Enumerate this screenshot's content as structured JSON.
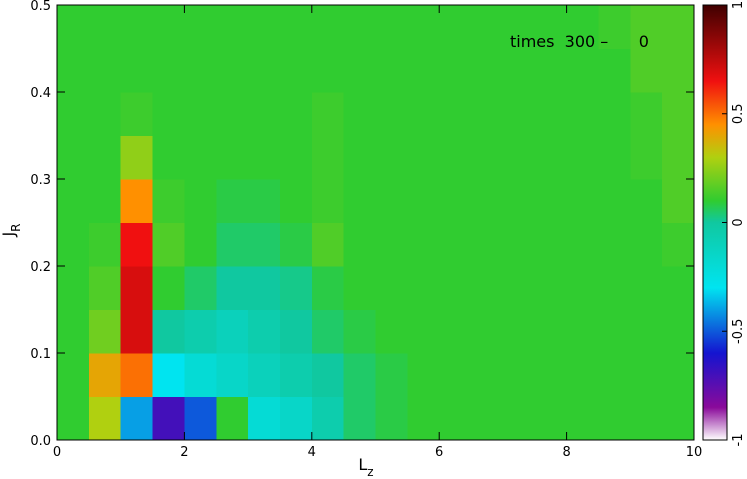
{
  "chart_data": {
    "type": "heatmap",
    "xlabel": "L",
    "xlabel_sub": "z",
    "ylabel": "J",
    "ylabel_sub": "R",
    "annotation": "times  300 –      0",
    "xlim": [
      0,
      10
    ],
    "ylim": [
      0,
      0.5
    ],
    "xticks": [
      0,
      2,
      4,
      6,
      8,
      10
    ],
    "yticks": [
      {
        "value": 0,
        "label": "0.0"
      },
      0.1,
      0.2,
      0.3,
      0.4,
      0.5
    ],
    "clim": [
      -1,
      1
    ],
    "cticks": [
      -1,
      -0.5,
      0,
      0.5,
      1
    ],
    "colorscale": [
      [
        -1,
        "#ffffff"
      ],
      [
        -0.85,
        "#8a0a9a"
      ],
      [
        -0.6,
        "#1414d0"
      ],
      [
        -0.3,
        "#00e4f0"
      ],
      [
        0,
        "#10c8a0"
      ],
      [
        0.1,
        "#30cc30"
      ],
      [
        0.3,
        "#b0d010"
      ],
      [
        0.45,
        "#ff9000"
      ],
      [
        0.65,
        "#f01010"
      ],
      [
        1,
        "#400000"
      ]
    ],
    "z": [
      [
        0.1,
        0.3,
        -0.4,
        -0.7,
        -0.5,
        0.1,
        -0.2,
        -0.15,
        -0.05,
        0.05,
        0.08,
        0.1,
        0.1,
        0.1,
        0.1,
        0.1,
        0.1,
        0.1,
        0.1,
        0.1
      ],
      [
        0.1,
        0.4,
        0.5,
        -0.3,
        -0.2,
        -0.15,
        -0.1,
        -0.05,
        0,
        0.05,
        0.08,
        0.1,
        0.1,
        0.1,
        0.1,
        0.1,
        0.1,
        0.1,
        0.1,
        0.1
      ],
      [
        0.1,
        0.2,
        0.7,
        0,
        -0.05,
        -0.1,
        -0.05,
        0,
        0.05,
        0.08,
        0.1,
        0.1,
        0.1,
        0.1,
        0.1,
        0.1,
        0.1,
        0.1,
        0.1,
        0.1
      ],
      [
        0.1,
        0.15,
        0.7,
        0.1,
        0.05,
        0,
        0,
        0.02,
        0.08,
        0.1,
        0.1,
        0.1,
        0.1,
        0.1,
        0.1,
        0.1,
        0.1,
        0.1,
        0.1,
        0.1
      ],
      [
        0.1,
        0.12,
        0.65,
        0.15,
        0.1,
        0.05,
        0.05,
        0.08,
        0.15,
        0.1,
        0.1,
        0.1,
        0.1,
        0.1,
        0.1,
        0.1,
        0.1,
        0.1,
        0.1,
        0.12
      ],
      [
        0.1,
        0.1,
        0.45,
        0.12,
        0.1,
        0.08,
        0.08,
        0.1,
        0.12,
        0.1,
        0.1,
        0.1,
        0.1,
        0.1,
        0.1,
        0.1,
        0.1,
        0.1,
        0.1,
        0.15
      ],
      [
        0.1,
        0.1,
        0.25,
        0.1,
        0.1,
        0.1,
        0.1,
        0.1,
        0.12,
        0.1,
        0.1,
        0.1,
        0.1,
        0.1,
        0.1,
        0.1,
        0.1,
        0.1,
        0.12,
        0.15
      ],
      [
        0.1,
        0.1,
        0.12,
        0.1,
        0.1,
        0.1,
        0.1,
        0.1,
        0.12,
        0.1,
        0.1,
        0.1,
        0.1,
        0.1,
        0.1,
        0.1,
        0.1,
        0.1,
        0.12,
        0.15
      ],
      [
        0.1,
        0.1,
        0.1,
        0.1,
        0.1,
        0.1,
        0.1,
        0.1,
        0.1,
        0.1,
        0.1,
        0.1,
        0.1,
        0.1,
        0.1,
        0.1,
        0.1,
        0.1,
        0.15,
        0.15
      ],
      [
        0.1,
        0.1,
        0.1,
        0.1,
        0.1,
        0.1,
        0.1,
        0.1,
        0.1,
        0.1,
        0.1,
        0.1,
        0.1,
        0.1,
        0.1,
        0.1,
        0.1,
        0.12,
        0.15,
        0.15
      ]
    ]
  }
}
